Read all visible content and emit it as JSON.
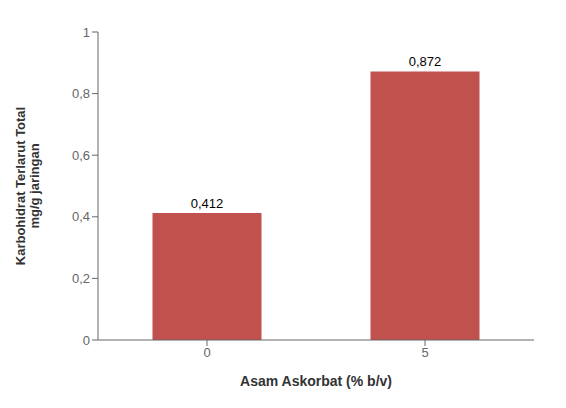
{
  "chart_data": {
    "type": "bar",
    "categories": [
      "0",
      "5"
    ],
    "values": [
      0.412,
      0.872
    ],
    "value_labels": [
      "0,412",
      "0,872"
    ],
    "data_labels": true,
    "color": "#c0514c",
    "xlabel": "Asam Askorbat (% b/v)",
    "ylabel": "Karbohidrat Terlarut Total\nmg/g jaringan",
    "ylim": [
      0,
      1
    ],
    "yticks": [
      0,
      {
        "value": 0.2,
        "label": "0,2"
      },
      {
        "value": 0.4,
        "label": "0,4"
      },
      {
        "value": 0.6,
        "label": "0,6"
      },
      {
        "value": 0.8,
        "label": "0,8"
      },
      1
    ],
    "grid": false
  }
}
